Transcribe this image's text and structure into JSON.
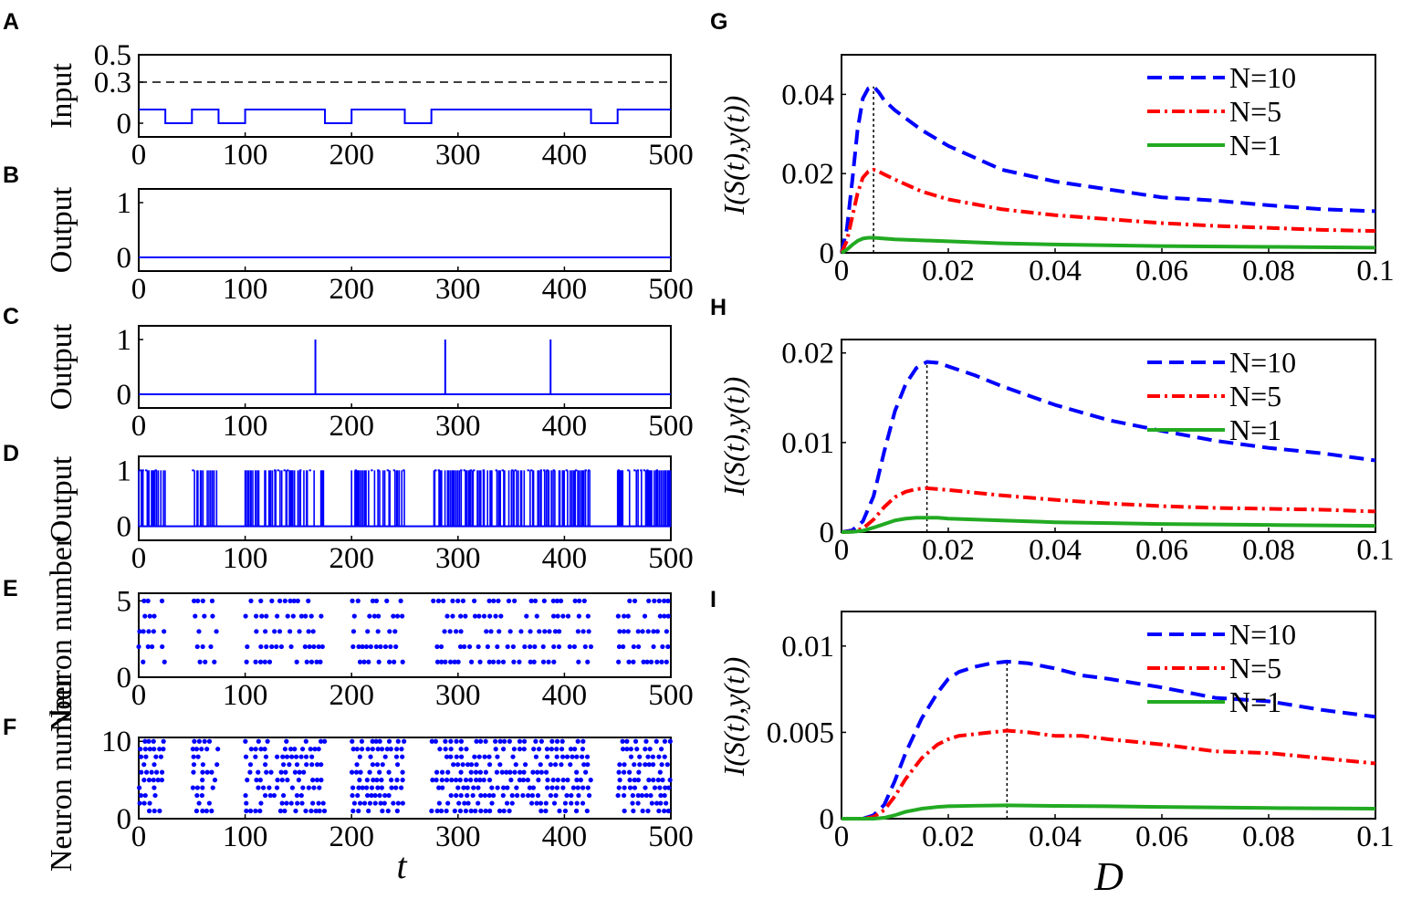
{
  "figure": {
    "panel_labels": [
      "A",
      "B",
      "C",
      "D",
      "E",
      "F",
      "G",
      "H",
      "I"
    ],
    "left_xlabel": "t",
    "right_xlabel": "D",
    "mi_ylabel": "I(S(t),y(t))"
  },
  "colors": {
    "blue": "#0000ff",
    "red": "#ff0000",
    "green": "#22aa22",
    "black": "#000000"
  },
  "chart_data": [
    {
      "id": "A",
      "type": "line",
      "ylabel": "Input",
      "xlim": [
        0,
        500
      ],
      "ylim": [
        -0.1,
        0.5
      ],
      "xticks": [
        "0",
        "100",
        "200",
        "300",
        "400",
        "500"
      ],
      "yticks": [
        "0",
        "0.3",
        "0.5"
      ],
      "ytick_values": [
        0,
        0.3,
        0.5
      ],
      "threshold": 0.3,
      "step_x": [
        0,
        25,
        25,
        50,
        50,
        75,
        75,
        100,
        100,
        175,
        175,
        200,
        200,
        250,
        250,
        275,
        275,
        425,
        425,
        450,
        450,
        500
      ],
      "step_y": [
        0.1,
        0.1,
        0,
        0,
        0.1,
        0.1,
        0,
        0,
        0.1,
        0.1,
        0,
        0,
        0.1,
        0.1,
        0,
        0,
        0.1,
        0.1,
        0,
        0,
        0.1,
        0.1
      ]
    },
    {
      "id": "B",
      "type": "line",
      "ylabel": "Output",
      "xlim": [
        0,
        500
      ],
      "ylim": [
        -0.25,
        1.25
      ],
      "xticks": [
        "0",
        "100",
        "200",
        "300",
        "400",
        "500"
      ],
      "yticks": [
        "0",
        "1"
      ],
      "ytick_values": [
        0,
        1
      ],
      "spikes": []
    },
    {
      "id": "C",
      "type": "line",
      "ylabel": "Output",
      "xlim": [
        0,
        500
      ],
      "ylim": [
        -0.25,
        1.25
      ],
      "xticks": [
        "0",
        "100",
        "200",
        "300",
        "400",
        "500"
      ],
      "yticks": [
        "0",
        "1"
      ],
      "ytick_values": [
        0,
        1
      ],
      "spikes": [
        166,
        288,
        387
      ]
    },
    {
      "id": "D",
      "type": "line",
      "ylabel": "Output",
      "xlim": [
        0,
        500
      ],
      "ylim": [
        -0.25,
        1.25
      ],
      "xticks": [
        "0",
        "100",
        "200",
        "300",
        "400",
        "500"
      ],
      "yticks": [
        "0",
        "1"
      ],
      "ytick_values": [
        0,
        1
      ],
      "spike_windows": [
        [
          0,
          25
        ],
        [
          50,
          75
        ],
        [
          100,
          175
        ],
        [
          200,
          250
        ],
        [
          275,
          425
        ],
        [
          450,
          500
        ]
      ]
    },
    {
      "id": "E",
      "type": "scatter",
      "ylabel": "Neuron number",
      "xlim": [
        0,
        500
      ],
      "ylim": [
        0,
        5.5
      ],
      "neurons": 5,
      "xticks": [
        "0",
        "100",
        "200",
        "300",
        "400",
        "500"
      ],
      "yticks": [
        "0",
        "5"
      ],
      "ytick_values": [
        0,
        5
      ],
      "spike_windows": [
        [
          0,
          25
        ],
        [
          50,
          75
        ],
        [
          100,
          175
        ],
        [
          200,
          250
        ],
        [
          275,
          425
        ],
        [
          450,
          500
        ]
      ]
    },
    {
      "id": "F",
      "type": "scatter",
      "ylabel": "Neuron number",
      "xlim": [
        0,
        500
      ],
      "ylim": [
        0,
        10.5
      ],
      "neurons": 10,
      "xticks": [
        "0",
        "100",
        "200",
        "300",
        "400",
        "500"
      ],
      "yticks": [
        "0",
        "10"
      ],
      "ytick_values": [
        0,
        10
      ],
      "xlabel": "t",
      "spike_windows": [
        [
          0,
          25
        ],
        [
          50,
          75
        ],
        [
          100,
          175
        ],
        [
          200,
          250
        ],
        [
          275,
          425
        ],
        [
          450,
          500
        ]
      ]
    },
    {
      "id": "G",
      "type": "line",
      "ylabel": "I(S(t),y(t))",
      "xlim": [
        0,
        0.1
      ],
      "ylim": [
        0,
        0.05
      ],
      "xticks": [
        "0",
        "0.02",
        "0.04",
        "0.06",
        "0.08",
        "0.1"
      ],
      "xtick_values": [
        0,
        0.02,
        0.04,
        0.06,
        0.08,
        0.1
      ],
      "yticks": [
        "0",
        "0.02",
        "0.04"
      ],
      "ytick_values": [
        0,
        0.02,
        0.04
      ],
      "peak_D": 0.006,
      "series": [
        {
          "name": "N=10",
          "style": "dash",
          "x": [
            0,
            0.001,
            0.002,
            0.003,
            0.004,
            0.005,
            0.006,
            0.007,
            0.008,
            0.01,
            0.015,
            0.02,
            0.03,
            0.04,
            0.05,
            0.06,
            0.07,
            0.08,
            0.09,
            0.1
          ],
          "y": [
            0,
            0.006,
            0.018,
            0.031,
            0.039,
            0.0415,
            0.042,
            0.0405,
            0.0385,
            0.036,
            0.031,
            0.027,
            0.021,
            0.018,
            0.016,
            0.014,
            0.0132,
            0.012,
            0.011,
            0.0105
          ]
        },
        {
          "name": "N=5",
          "style": "dashdot",
          "x": [
            0,
            0.001,
            0.002,
            0.003,
            0.004,
            0.005,
            0.006,
            0.007,
            0.008,
            0.01,
            0.015,
            0.02,
            0.03,
            0.04,
            0.05,
            0.06,
            0.07,
            0.08,
            0.09,
            0.1
          ],
          "y": [
            0,
            0.003,
            0.009,
            0.015,
            0.019,
            0.0205,
            0.021,
            0.0205,
            0.0198,
            0.0185,
            0.0155,
            0.0135,
            0.011,
            0.0095,
            0.0085,
            0.0075,
            0.0068,
            0.0063,
            0.0058,
            0.0055
          ]
        },
        {
          "name": "N=1",
          "style": "solid",
          "x": [
            0,
            0.001,
            0.002,
            0.003,
            0.004,
            0.005,
            0.006,
            0.008,
            0.01,
            0.02,
            0.03,
            0.04,
            0.06,
            0.08,
            0.1
          ],
          "y": [
            0,
            0.0008,
            0.002,
            0.003,
            0.0036,
            0.0038,
            0.0038,
            0.0036,
            0.0034,
            0.0029,
            0.0024,
            0.0021,
            0.0017,
            0.0015,
            0.0013
          ]
        }
      ]
    },
    {
      "id": "H",
      "type": "line",
      "ylabel": "I(S(t),y(t))",
      "xlim": [
        0,
        0.1
      ],
      "ylim": [
        0,
        0.0215
      ],
      "xticks": [
        "0",
        "0.02",
        "0.04",
        "0.06",
        "0.08",
        "0.1"
      ],
      "xtick_values": [
        0,
        0.02,
        0.04,
        0.06,
        0.08,
        0.1
      ],
      "yticks": [
        "0",
        "0.01",
        "0.02"
      ],
      "ytick_values": [
        0,
        0.01,
        0.02
      ],
      "peak_D": 0.016,
      "series": [
        {
          "name": "N=10",
          "style": "dash",
          "x": [
            0,
            0.002,
            0.004,
            0.006,
            0.008,
            0.01,
            0.012,
            0.014,
            0.016,
            0.018,
            0.02,
            0.025,
            0.03,
            0.04,
            0.05,
            0.06,
            0.07,
            0.08,
            0.09,
            0.1
          ],
          "y": [
            0,
            0.0002,
            0.0012,
            0.004,
            0.009,
            0.0135,
            0.0165,
            0.0183,
            0.019,
            0.0189,
            0.0185,
            0.0175,
            0.0163,
            0.0142,
            0.0125,
            0.0113,
            0.0102,
            0.0094,
            0.0088,
            0.008
          ]
        },
        {
          "name": "N=5",
          "style": "dashdot",
          "x": [
            0,
            0.002,
            0.004,
            0.006,
            0.008,
            0.01,
            0.012,
            0.014,
            0.016,
            0.018,
            0.02,
            0.03,
            0.04,
            0.05,
            0.06,
            0.07,
            0.08,
            0.09,
            0.1
          ],
          "y": [
            0,
            5e-05,
            0.0004,
            0.0014,
            0.0028,
            0.0039,
            0.0045,
            0.0048,
            0.0049,
            0.0048,
            0.0047,
            0.0041,
            0.0036,
            0.0032,
            0.0029,
            0.0027,
            0.0026,
            0.0025,
            0.0023
          ]
        },
        {
          "name": "N=1",
          "style": "solid",
          "x": [
            0,
            0.002,
            0.004,
            0.006,
            0.008,
            0.01,
            0.012,
            0.014,
            0.016,
            0.018,
            0.02,
            0.03,
            0.04,
            0.05,
            0.06,
            0.08,
            0.1
          ],
          "y": [
            0,
            2e-05,
            0.00015,
            0.0005,
            0.0009,
            0.0013,
            0.0015,
            0.0016,
            0.0016,
            0.0016,
            0.0015,
            0.0013,
            0.0011,
            0.001,
            0.0009,
            0.0008,
            0.0007
          ]
        }
      ]
    },
    {
      "id": "I",
      "type": "line",
      "ylabel": "I(S(t),y(t))",
      "xlim": [
        0,
        0.1
      ],
      "ylim": [
        0,
        0.012
      ],
      "xticks": [
        "0",
        "0.02",
        "0.04",
        "0.06",
        "0.08",
        "0.1"
      ],
      "xtick_values": [
        0,
        0.02,
        0.04,
        0.06,
        0.08,
        0.1
      ],
      "yticks": [
        "0",
        "0.005",
        "0.01"
      ],
      "ytick_values": [
        0,
        0.005,
        0.01
      ],
      "peak_D": 0.031,
      "series": [
        {
          "name": "N=10",
          "style": "dash",
          "x": [
            0,
            0.004,
            0.006,
            0.008,
            0.01,
            0.012,
            0.015,
            0.018,
            0.02,
            0.022,
            0.025,
            0.028,
            0.031,
            0.035,
            0.04,
            0.045,
            0.05,
            0.06,
            0.07,
            0.08,
            0.09,
            0.1
          ],
          "y": [
            0,
            0,
            0.0002,
            0.0008,
            0.0022,
            0.0038,
            0.0058,
            0.0073,
            0.0081,
            0.0085,
            0.0088,
            0.009,
            0.0091,
            0.009,
            0.0087,
            0.0083,
            0.0081,
            0.0076,
            0.007,
            0.0068,
            0.0063,
            0.0059
          ]
        },
        {
          "name": "N=5",
          "style": "dashdot",
          "x": [
            0,
            0.004,
            0.006,
            0.008,
            0.01,
            0.012,
            0.015,
            0.018,
            0.02,
            0.022,
            0.025,
            0.028,
            0.031,
            0.035,
            0.04,
            0.045,
            0.05,
            0.06,
            0.07,
            0.08,
            0.09,
            0.1
          ],
          "y": [
            0,
            0,
            0.0001,
            0.0005,
            0.0013,
            0.0023,
            0.0035,
            0.0043,
            0.0046,
            0.0048,
            0.0049,
            0.005,
            0.0051,
            0.005,
            0.0048,
            0.0048,
            0.0046,
            0.0043,
            0.0039,
            0.0038,
            0.0035,
            0.0032
          ]
        },
        {
          "name": "N=1",
          "style": "solid",
          "x": [
            0,
            0.006,
            0.008,
            0.01,
            0.012,
            0.015,
            0.018,
            0.02,
            0.025,
            0.031,
            0.04,
            0.05,
            0.06,
            0.08,
            0.1
          ],
          "y": [
            0,
            0,
            5e-05,
            0.0002,
            0.0004,
            0.00058,
            0.00068,
            0.00072,
            0.00075,
            0.00077,
            0.00074,
            0.00072,
            0.00068,
            0.00062,
            0.00058
          ]
        }
      ]
    }
  ]
}
